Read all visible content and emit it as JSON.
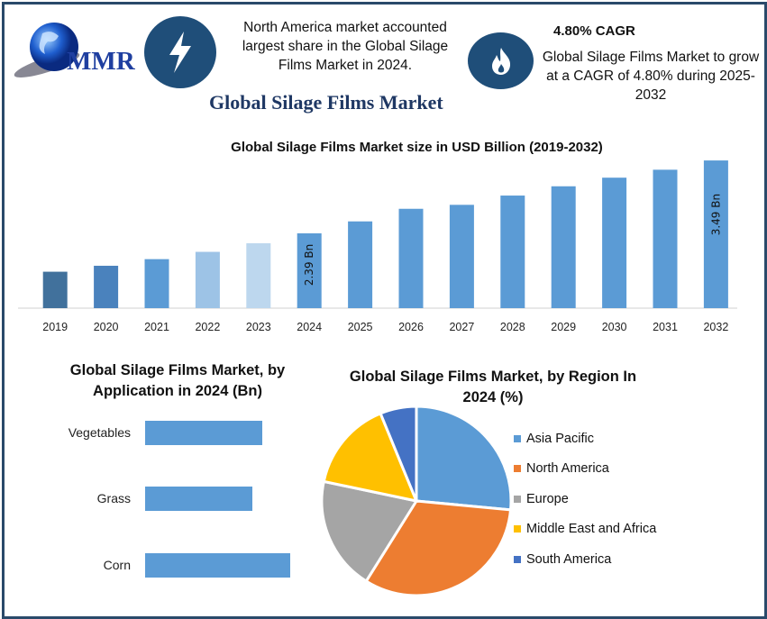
{
  "header": {
    "logo_text": "MMR",
    "info1": "North America market accounted largest share in the Global Silage Films Market in 2024.",
    "cagr_title": "4.80% CAGR",
    "cagr_text": "Global Silage Films Market to grow at a CAGR of 4.80% during 2025-2032",
    "title": "Global Silage Films Market",
    "icons": [
      "lightning-icon",
      "flame-icon"
    ],
    "accent": "#1f4e79"
  },
  "chart_data": [
    {
      "type": "bar",
      "title": "Global Silage Films Market size in USD Billion (2019-2032)",
      "categories": [
        "2019",
        "2020",
        "2021",
        "2022",
        "2023",
        "2024",
        "2025",
        "2026",
        "2027",
        "2028",
        "2029",
        "2030",
        "2031",
        "2032"
      ],
      "values": [
        1.81,
        1.9,
        2.0,
        2.11,
        2.24,
        2.39,
        2.57,
        2.76,
        2.82,
        2.96,
        3.1,
        3.23,
        3.35,
        3.49
      ],
      "data_labels": {
        "2024": "2.39 Bn",
        "2032": "3.49 Bn"
      },
      "colors": [
        "#41719c",
        "#4a82bd",
        "#5b9bd5",
        "#9dc3e6",
        "#bdd7ee",
        "#5b9bd5",
        "#5b9bd5",
        "#5b9bd5",
        "#5b9bd5",
        "#5b9bd5",
        "#5b9bd5",
        "#5b9bd5",
        "#5b9bd5",
        "#5b9bd5"
      ],
      "ylim": [
        1.26,
        3.6
      ],
      "grid": false
    },
    {
      "type": "bar",
      "orientation": "horizontal",
      "title": "Global Silage Films Market, by Application in 2024 (Bn)",
      "categories": [
        "Vegetables",
        "Grass",
        "Corn"
      ],
      "values": [
        130,
        119,
        161
      ],
      "color": "#5b9bd5"
    },
    {
      "type": "pie",
      "title": "Global Silage Films Market, by Region In 2024 (%)",
      "labels": [
        "Asia Pacific",
        "North America",
        "Europe",
        "Middle East and Africa",
        "South America"
      ],
      "values": [
        26.5,
        32.4,
        19.4,
        15.5,
        6.2
      ],
      "colors": [
        "#5b9bd5",
        "#ed7d31",
        "#a5a5a5",
        "#ffc000",
        "#4472c4"
      ],
      "legend": "right"
    }
  ]
}
